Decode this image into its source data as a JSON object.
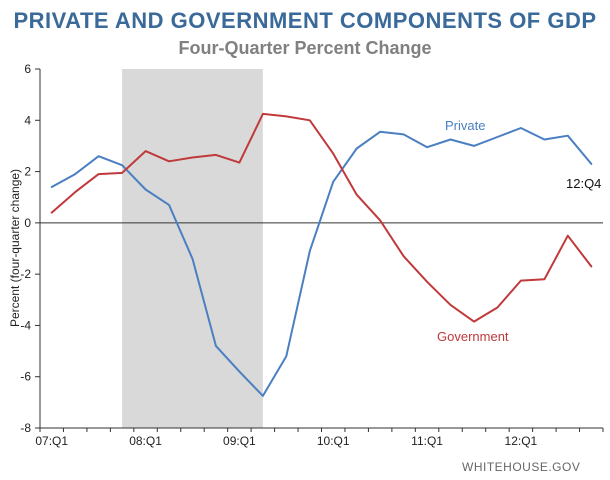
{
  "chart_data": {
    "type": "line",
    "title": "PRIVATE AND GOVERNMENT COMPONENTS OF GDP",
    "subtitle": "Four-Quarter Percent Change",
    "ylabel": "Percent (four-quarter change)",
    "ylim": [
      -8,
      6
    ],
    "yticks": [
      "6",
      "4",
      "2",
      "0",
      "-2",
      "-4",
      "-6",
      "-8"
    ],
    "x_tick_labels": [
      "07:Q1",
      "08:Q1",
      "09:Q1",
      "10:Q1",
      "11:Q1",
      "12:Q1"
    ],
    "x": [
      "07:Q1",
      "07:Q2",
      "07:Q3",
      "07:Q4",
      "08:Q1",
      "08:Q2",
      "08:Q3",
      "08:Q4",
      "09:Q1",
      "09:Q2",
      "09:Q3",
      "09:Q4",
      "10:Q1",
      "10:Q2",
      "10:Q3",
      "10:Q4",
      "11:Q1",
      "11:Q2",
      "11:Q3",
      "11:Q4",
      "12:Q1",
      "12:Q2",
      "12:Q3",
      "12:Q4"
    ],
    "recession_shading": {
      "start": "07:Q4",
      "end": "09:Q2",
      "color": "#d9d9d9"
    },
    "series": [
      {
        "name": "Private",
        "color": "#4a7fc1",
        "values": [
          1.4,
          1.9,
          2.6,
          2.25,
          1.3,
          0.7,
          -1.4,
          -4.8,
          -5.8,
          -6.75,
          -5.2,
          -1.1,
          1.6,
          2.9,
          3.55,
          3.45,
          2.95,
          3.25,
          3.0,
          3.35,
          3.7,
          3.25,
          3.4,
          2.3
        ]
      },
      {
        "name": "Government",
        "color": "#c0393b",
        "values": [
          0.4,
          1.2,
          1.9,
          1.95,
          2.8,
          2.4,
          2.55,
          2.65,
          2.35,
          4.25,
          4.15,
          4.0,
          2.7,
          1.1,
          0.1,
          -1.3,
          -2.3,
          -3.2,
          -3.85,
          -3.3,
          -2.25,
          -2.2,
          -0.5,
          -1.7
        ]
      }
    ],
    "annotation": "12:Q4",
    "gridlines": false
  },
  "source": "WHITEHOUSE.GOV"
}
